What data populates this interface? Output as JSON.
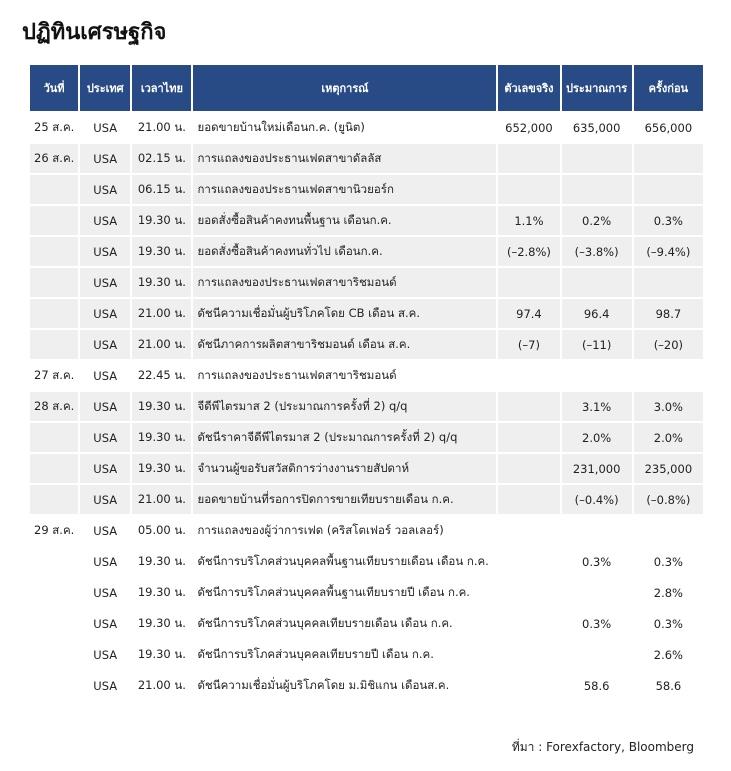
{
  "header": {
    "title": "ปฏิทินเศรษฐกิจ"
  },
  "table": {
    "columns": [
      "วันที่",
      "ประเทศ",
      "เวลาไทย",
      "เหตุการณ์",
      "ตัวเลขจริง",
      "ประมาณการ",
      "ครั้งก่อน"
    ],
    "rows": [
      [
        "25 ส.ค.",
        "USA",
        "21.00 น.",
        "ยอดขายบ้านใหม่เดือนก.ค. (ยูนิต)",
        "652,000",
        "635,000",
        "656,000"
      ],
      [
        "26 ส.ค.",
        "USA",
        "02.15 น.",
        "การแถลงของประธานเฟดสาขาดัลลัส",
        null,
        null,
        null
      ],
      [
        null,
        "USA",
        "06.15 น.",
        "การแถลงของประธานเฟดสาขานิวยอร์ก",
        null,
        null,
        null
      ],
      [
        null,
        "USA",
        "19.30 น.",
        "ยอดสั่งซื้อสินค้าคงทนพื้นฐาน เดือนก.ค.",
        "1.1%",
        "0.2%",
        "0.3%"
      ],
      [
        null,
        "USA",
        "19.30 น.",
        "ยอดสั่งซื้อสินค้าคงทนทั่วไป เดือนก.ค.",
        "(–2.8%)",
        "(–3.8%)",
        "(–9.4%)"
      ],
      [
        null,
        "USA",
        "19.30 น.",
        "การแถลงของประธานเฟดสาขาริชมอนด์",
        null,
        null,
        null
      ],
      [
        null,
        "USA",
        "21.00 น.",
        "ดัชนีความเชื่อมั่นผู้บริโภคโดย CB เดือน ส.ค.",
        "97.4",
        "96.4",
        "98.7"
      ],
      [
        null,
        "USA",
        "21.00 น.",
        "ดัชนีภาคการผลิตสาขาริชมอนด์ เดือน ส.ค.",
        "(–7)",
        "(–11)",
        "(–20)"
      ],
      [
        "27 ส.ค.",
        "USA",
        "22.45 น.",
        "การแถลงของประธานเฟดสาขาริชมอนด์",
        null,
        null,
        null
      ],
      [
        "28 ส.ค.",
        "USA",
        "19.30 น.",
        "จีดีพีไตรมาส 2 (ประมาณการครั้งที่ 2) q/q",
        null,
        "3.1%",
        "3.0%"
      ],
      [
        null,
        "USA",
        "19.30 น.",
        "ดัชนีราคาจีดีพีไตรมาส 2 (ประมาณการครั้งที่ 2) q/q",
        null,
        "2.0%",
        "2.0%"
      ],
      [
        null,
        "USA",
        "19.30 น.",
        "จำนวนผู้ขอรับสวัสดิการว่างงานรายสัปดาห์",
        null,
        "231,000",
        "235,000"
      ],
      [
        null,
        "USA",
        "21.00 น.",
        "ยอดขายบ้านที่รอการปิดการขายเทียบรายเดือน ก.ค.",
        null,
        "(–0.4%)",
        "(–0.8%)"
      ],
      [
        "29 ส.ค.",
        "USA",
        "05.00 น.",
        "การแถลงของผู้ว่าการเฟด (คริสโตเฟอร์ วอลเลอร์)",
        null,
        null,
        null
      ],
      [
        null,
        "USA",
        "19.30 น.",
        "ดัชนีการบริโภคส่วนบุคคลพื้นฐานเทียบรายเดือน เดือน ก.ค.",
        null,
        "0.3%",
        "0.3%"
      ],
      [
        null,
        "USA",
        "19.30 น.",
        "ดัชนีการบริโภคส่วนบุคคลพื้นฐานเทียบรายปี เดือน ก.ค.",
        null,
        null,
        "2.8%"
      ],
      [
        null,
        "USA",
        "19.30 น.",
        "ดัชนีการบริโภคส่วนบุคคลเทียบรายเดือน เดือน ก.ค.",
        null,
        "0.3%",
        "0.3%"
      ],
      [
        null,
        "USA",
        "19.30 น.",
        "ดัชนีการบริโภคส่วนบุคคลเทียบรายปี เดือน ก.ค.",
        null,
        null,
        "2.6%"
      ],
      [
        null,
        "USA",
        "21.00 น.",
        "ดัชนีความเชื่อมั่นผู้บริโภคโดย ม.มิชิแกน เดือนส.ค.",
        null,
        "58.6",
        "58.6"
      ]
    ]
  },
  "footer": {
    "source": "ที่มา : Forexfactory, Bloomberg"
  }
}
